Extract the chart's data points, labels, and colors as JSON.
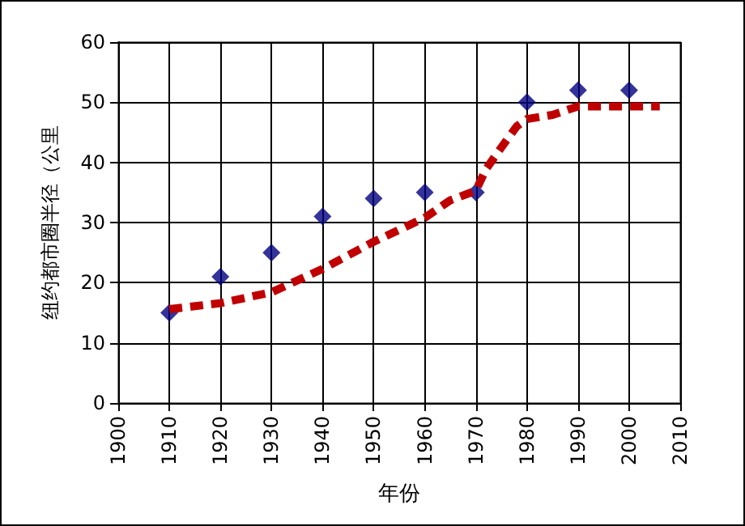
{
  "chart_data": {
    "type": "scatter",
    "xlabel": "年份",
    "ylabel": "纽约都市圈半径（公里",
    "x": [
      1910,
      1920,
      1930,
      1940,
      1950,
      1960,
      1970,
      1980,
      1990,
      2000
    ],
    "series": [
      {
        "color": "#000080",
        "marker": "diamond",
        "values": [
          15,
          21,
          25,
          31,
          34,
          35,
          35,
          50,
          52,
          52
        ]
      },
      {
        "type": "line",
        "color": "#c00000",
        "marker": "none",
        "line_style": "dashed",
        "x": [
          1910,
          1920,
          1930,
          1940,
          1950,
          1960,
          1965,
          1970,
          1972,
          1975,
          1978,
          1980,
          1985,
          1990,
          2006
        ],
        "values": [
          15.6,
          16.6,
          18.4,
          22.3,
          26.8,
          30.8,
          33.7,
          35.3,
          38.9,
          42.5,
          46,
          47.2,
          47.9,
          49.3,
          49.3
        ]
      }
    ],
    "xlim": [
      1900,
      2010
    ],
    "xticks": [
      1900,
      1910,
      1920,
      1930,
      1940,
      1950,
      1960,
      1970,
      1980,
      1990,
      2000,
      2010
    ],
    "ylim": [
      0,
      60
    ],
    "yticks": [
      0,
      10,
      20,
      30,
      40,
      50,
      60
    ],
    "grid": true
  }
}
